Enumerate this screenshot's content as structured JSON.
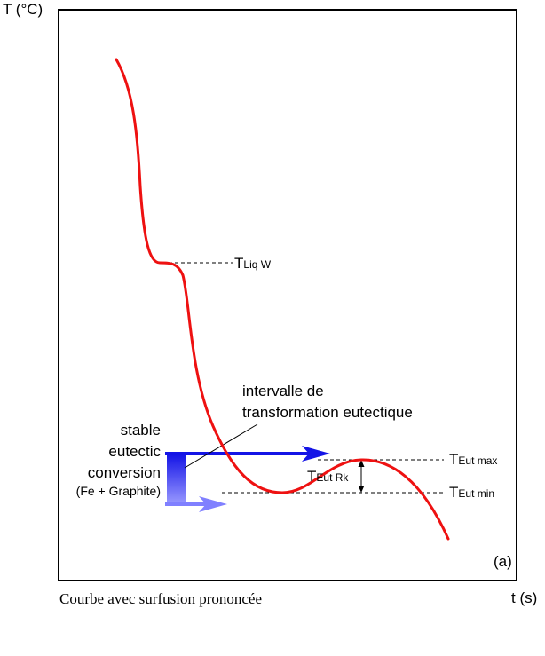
{
  "axes": {
    "y_label": "T (°C)",
    "x_label": "t (s)"
  },
  "panel_label": "(a)",
  "caption": "Courbe avec surfusion prononcée",
  "annotations": {
    "t_liq": {
      "main": "T",
      "sub": "Liq W"
    },
    "t_eut_max": {
      "main": "T",
      "sub": "Eut max"
    },
    "t_eut_min": {
      "main": "T",
      "sub": "Eut min"
    },
    "t_eut_rk": {
      "main": "T",
      "sub": "Eut Rk"
    },
    "interval_line1": "intervalle de",
    "interval_line2": "transformation eutectique",
    "stable_line1": "stable",
    "stable_line2": "eutectic",
    "stable_line3": "conversion",
    "stable_line4": "(Fe + Graphite)"
  },
  "colors": {
    "curve": "#ee1111",
    "arrow_dark": "#1414e6",
    "arrow_light": "#8080ff",
    "frame": "#000000"
  }
}
